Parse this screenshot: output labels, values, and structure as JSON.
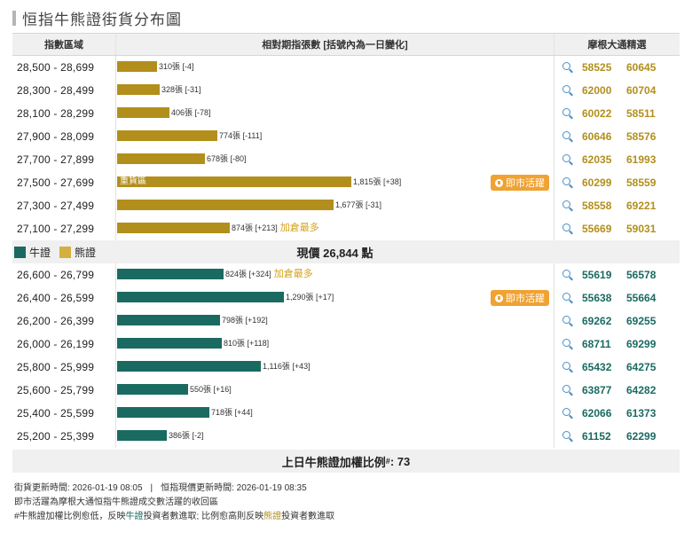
{
  "title": "恒指牛熊證街貨分布圖",
  "headers": {
    "range": "指數區域",
    "count": "相對期指張數 [括號內為一日變化]",
    "codes": "摩根大通精選"
  },
  "legend": {
    "bull": "牛證",
    "bear": "熊證"
  },
  "current_price": "現價 26,844 點",
  "active_label": "即市活躍",
  "add_label": "加倉最多",
  "heavy_label": "重貨區",
  "ratio_text": "上日牛熊證加權比例",
  "ratio_sup": "#",
  "ratio_value": ": 73",
  "notes": {
    "line1_a": "街貨更新時間: 2026-01-19 08:05",
    "line1_sep": "|",
    "line1_b": "恒指現價更新時間: 2026-01-19 08:35",
    "line2": "即市活躍為摩根大通恒指牛熊證成交數活躍的收回區",
    "line3_a": "#牛熊證加權比例愈低，反映",
    "line3_bull": "牛證",
    "line3_b": "投資者數進取; 比例愈高則反映",
    "line3_bear": "熊證",
    "line3_c": "投資者數進取"
  },
  "colors": {
    "bull": "#1a6a62",
    "bear": "#b28f1c",
    "accent": "#f0a232",
    "icon": "#4a8fc7"
  },
  "icons": {
    "lookup": "search-icon",
    "active": "clock-icon"
  },
  "chart_data": {
    "type": "bar",
    "orientation": "horizontal",
    "unit": "張",
    "max_scale": 1815,
    "bear": [
      {
        "range": "28,500 - 28,699",
        "value": 310,
        "change": -4,
        "label": "310張 [-4]",
        "codes": [
          "58525",
          "60645"
        ]
      },
      {
        "range": "28,300 - 28,499",
        "value": 328,
        "change": -31,
        "label": "328張 [-31]",
        "codes": [
          "62000",
          "60704"
        ]
      },
      {
        "range": "28,100 - 28,299",
        "value": 406,
        "change": -78,
        "label": "406張 [-78]",
        "codes": [
          "60022",
          "58511"
        ]
      },
      {
        "range": "27,900 - 28,099",
        "value": 774,
        "change": -111,
        "label": "774張 [-111]",
        "codes": [
          "60646",
          "58576"
        ]
      },
      {
        "range": "27,700 - 27,899",
        "value": 678,
        "change": -80,
        "label": "678張 [-80]",
        "codes": [
          "62035",
          "61993"
        ]
      },
      {
        "range": "27,500 - 27,699",
        "value": 1815,
        "change": 38,
        "label": "1,815張 [+38]",
        "codes": [
          "60299",
          "58559"
        ],
        "heavy": true,
        "active": true
      },
      {
        "range": "27,300 - 27,499",
        "value": 1677,
        "change": -31,
        "label": "1,677張 [-31]",
        "codes": [
          "58558",
          "69221"
        ]
      },
      {
        "range": "27,100 - 27,299",
        "value": 874,
        "change": 213,
        "label": "874張 [+213]",
        "codes": [
          "55669",
          "59031"
        ],
        "most_added": true
      }
    ],
    "bull": [
      {
        "range": "26,600 - 26,799",
        "value": 824,
        "change": 324,
        "label": "824張 [+324]",
        "codes": [
          "55619",
          "56578"
        ],
        "most_added": true
      },
      {
        "range": "26,400 - 26,599",
        "value": 1290,
        "change": 17,
        "label": "1,290張 [+17]",
        "codes": [
          "55638",
          "55664"
        ],
        "active": true
      },
      {
        "range": "26,200 - 26,399",
        "value": 798,
        "change": 192,
        "label": "798張 [+192]",
        "codes": [
          "69262",
          "69255"
        ]
      },
      {
        "range": "26,000 - 26,199",
        "value": 810,
        "change": 118,
        "label": "810張 [+118]",
        "codes": [
          "68711",
          "69299"
        ]
      },
      {
        "range": "25,800 - 25,999",
        "value": 1116,
        "change": 43,
        "label": "1,116張 [+43]",
        "codes": [
          "65432",
          "64275"
        ]
      },
      {
        "range": "25,600 - 25,799",
        "value": 550,
        "change": 16,
        "label": "550張 [+16]",
        "codes": [
          "63877",
          "64282"
        ]
      },
      {
        "range": "25,400 - 25,599",
        "value": 718,
        "change": 44,
        "label": "718張 [+44]",
        "codes": [
          "62066",
          "61373"
        ]
      },
      {
        "range": "25,200 - 25,399",
        "value": 386,
        "change": -2,
        "label": "386張 [-2]",
        "codes": [
          "61152",
          "62299"
        ]
      }
    ]
  }
}
